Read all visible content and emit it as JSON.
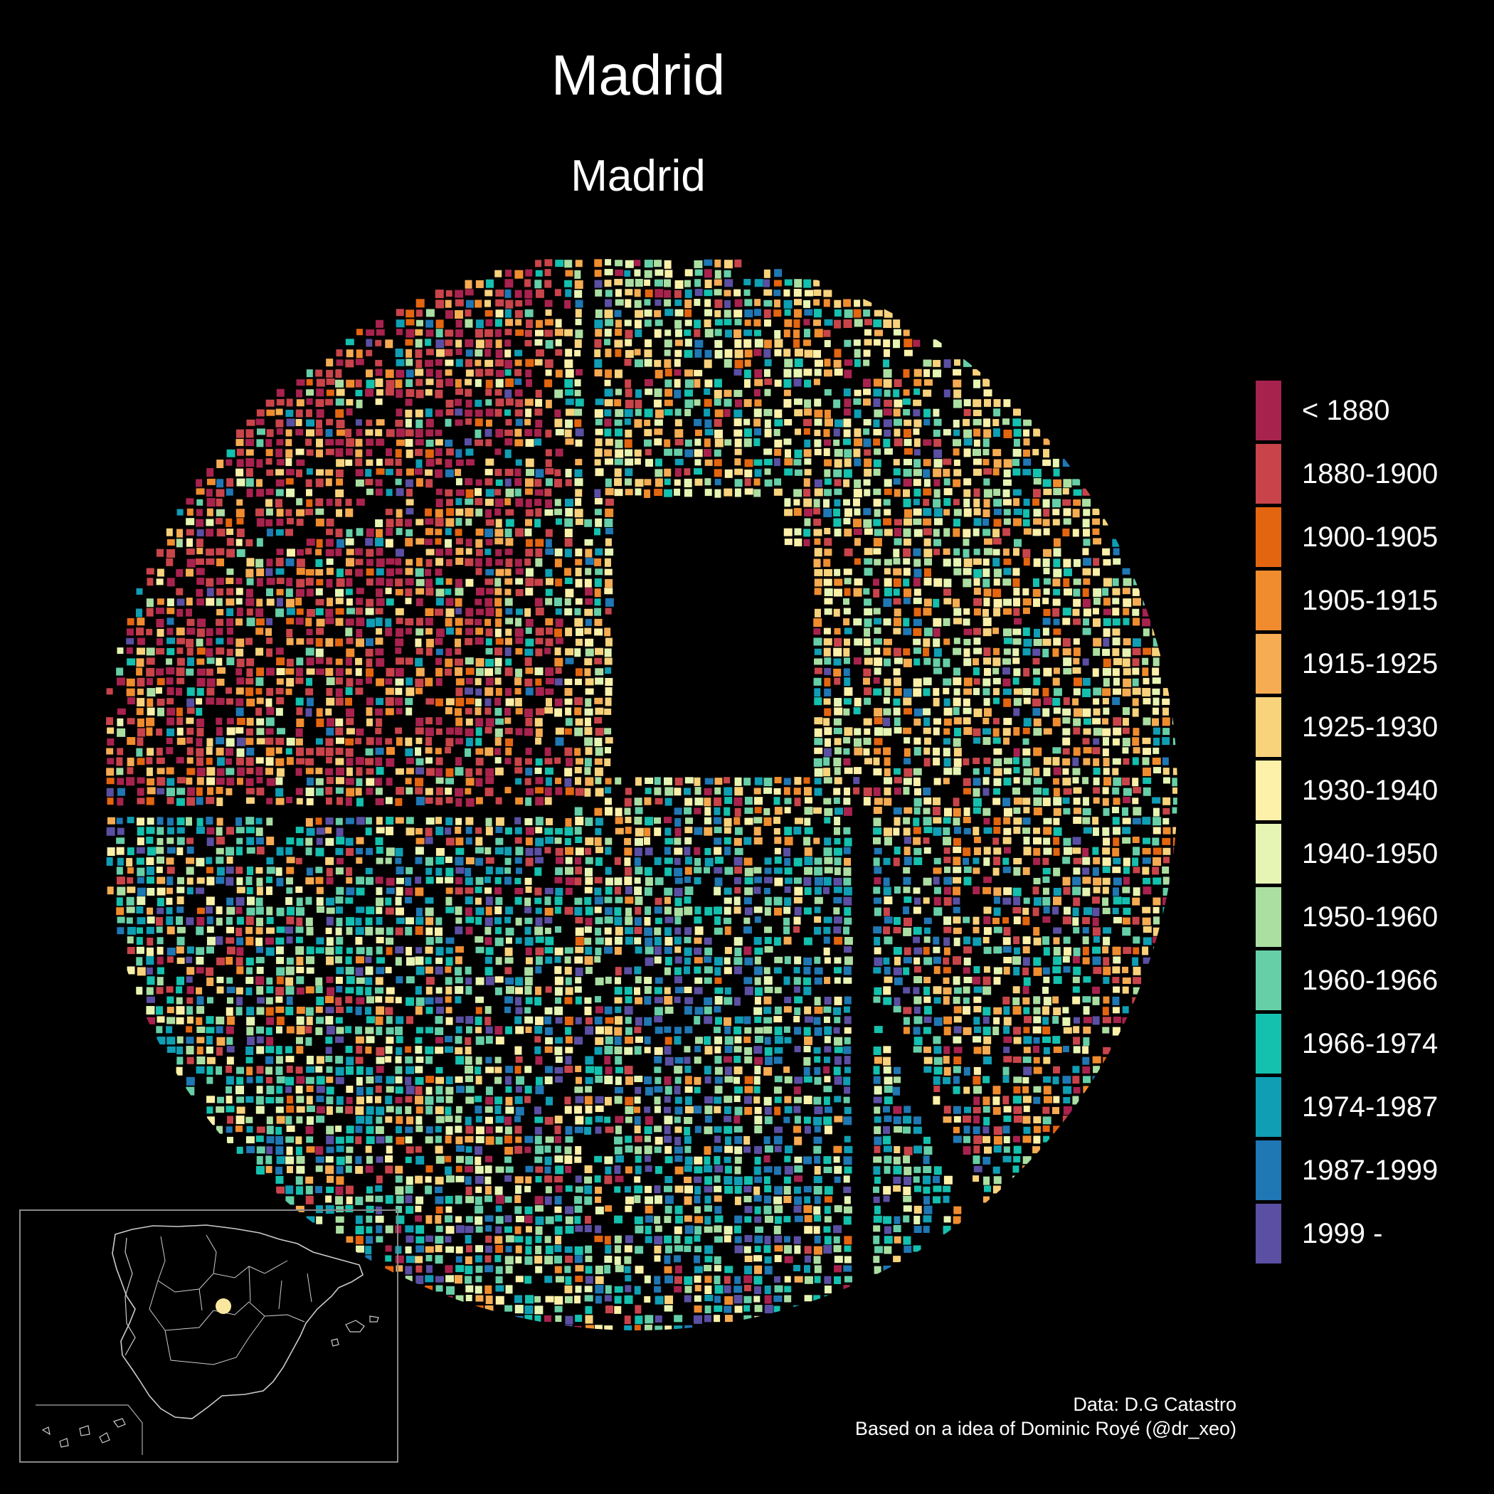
{
  "title": "Madrid",
  "subtitle": "Madrid",
  "legend": {
    "items": [
      {
        "label": "< 1880",
        "color": "#a8224e"
      },
      {
        "label": "1880-1900",
        "color": "#c9444a"
      },
      {
        "label": "1900-1905",
        "color": "#e4650f"
      },
      {
        "label": "1905-1915",
        "color": "#f08c2e"
      },
      {
        "label": "1915-1925",
        "color": "#f6ac52"
      },
      {
        "label": "1925-1930",
        "color": "#f9d27c"
      },
      {
        "label": "1930-1940",
        "color": "#fdf1a9"
      },
      {
        "label": "1940-1950",
        "color": "#e6f5b3"
      },
      {
        "label": "1950-1960",
        "color": "#abdfa2"
      },
      {
        "label": "1960-1966",
        "color": "#66cfa7"
      },
      {
        "label": "1966-1974",
        "color": "#14c0ae"
      },
      {
        "label": "1974-1987",
        "color": "#0f9eb4"
      },
      {
        "label": "1987-1999",
        "color": "#1f77b4"
      },
      {
        "label": "1999 -",
        "color": "#5a4fa3"
      }
    ]
  },
  "caption": {
    "line1": "Data: D.G Catastro",
    "line2": "Based on a idea of Dominic Royé (@dr_xeo)"
  },
  "inset": {
    "marker_color": "#f9e79f",
    "outline_color": "#cccccc"
  }
}
